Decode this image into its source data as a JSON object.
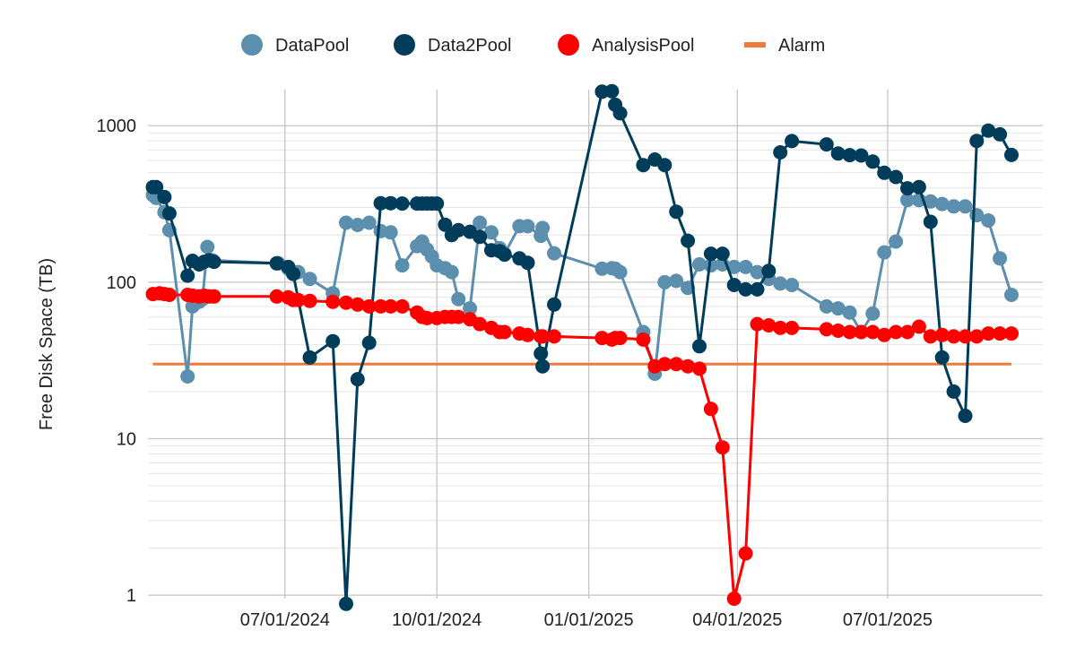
{
  "chart_data": {
    "type": "line",
    "title": "",
    "xlabel": "",
    "ylabel": "Free Disk Space (TB)",
    "y_scale": "log",
    "ylim": [
      0.95,
      1700
    ],
    "xlim": [
      "2024-04-09",
      "2025-10-03"
    ],
    "x_ticks": [
      "2024-07-01",
      "2024-10-01",
      "2025-01-01",
      "2025-04-01",
      "2025-07-01"
    ],
    "x_tick_labels": [
      "07/01/2024",
      "10/01/2024",
      "01/01/2025",
      "04/01/2025",
      "07/01/2025"
    ],
    "y_ticks": [
      1,
      10,
      100,
      1000
    ],
    "y_tick_labels": [
      "1",
      "10",
      "100",
      "1000"
    ],
    "grid": true,
    "legend_position": "top",
    "series": [
      {
        "name": "DataPool",
        "color": "#5b8fad",
        "marker": "circle",
        "points": [
          [
            "2024-04-12",
            360
          ],
          [
            "2024-04-14",
            345
          ],
          [
            "2024-04-19",
            280
          ],
          [
            "2024-04-22",
            215
          ],
          [
            "2024-05-03",
            25
          ],
          [
            "2024-05-06",
            70
          ],
          [
            "2024-05-10",
            75
          ],
          [
            "2024-05-12",
            78
          ],
          [
            "2024-05-15",
            168
          ],
          [
            "2024-05-18",
            138
          ],
          [
            "2024-06-27",
            132
          ],
          [
            "2024-07-03",
            122
          ],
          [
            "2024-07-09",
            116
          ],
          [
            "2024-07-16",
            105
          ],
          [
            "2024-07-30",
            85
          ],
          [
            "2024-08-07",
            240
          ],
          [
            "2024-08-14",
            232
          ],
          [
            "2024-08-21",
            240
          ],
          [
            "2024-08-28",
            212
          ],
          [
            "2024-09-03",
            208
          ],
          [
            "2024-09-10",
            128
          ],
          [
            "2024-09-19",
            170
          ],
          [
            "2024-09-22",
            182
          ],
          [
            "2024-09-25",
            162
          ],
          [
            "2024-09-28",
            146
          ],
          [
            "2024-10-01",
            128
          ],
          [
            "2024-10-06",
            123
          ],
          [
            "2024-10-10",
            116
          ],
          [
            "2024-10-14",
            78
          ],
          [
            "2024-10-21",
            68
          ],
          [
            "2024-10-27",
            240
          ],
          [
            "2024-11-03",
            208
          ],
          [
            "2024-11-08",
            165
          ],
          [
            "2024-11-11",
            152
          ],
          [
            "2024-11-20",
            228
          ],
          [
            "2024-11-25",
            228
          ],
          [
            "2024-12-03",
            198
          ],
          [
            "2024-12-04",
            222
          ],
          [
            "2024-12-11",
            153
          ],
          [
            "2025-01-09",
            122
          ],
          [
            "2025-01-15",
            123
          ],
          [
            "2025-01-17",
            122
          ],
          [
            "2025-01-20",
            116
          ],
          [
            "2025-02-03",
            48
          ],
          [
            "2025-02-10",
            26
          ],
          [
            "2025-02-16",
            100
          ],
          [
            "2025-02-23",
            102
          ],
          [
            "2025-03-02",
            92
          ],
          [
            "2025-03-09",
            130
          ],
          [
            "2025-03-16",
            128
          ],
          [
            "2025-03-23",
            130
          ],
          [
            "2025-03-30",
            125
          ],
          [
            "2025-04-06",
            125
          ],
          [
            "2025-04-13",
            116
          ],
          [
            "2025-04-20",
            105
          ],
          [
            "2025-04-27",
            98
          ],
          [
            "2025-05-04",
            96
          ],
          [
            "2025-05-25",
            70
          ],
          [
            "2025-06-01",
            68
          ],
          [
            "2025-06-08",
            64
          ],
          [
            "2025-06-15",
            48
          ],
          [
            "2025-06-22",
            63
          ],
          [
            "2025-06-29",
            155
          ],
          [
            "2025-07-06",
            182
          ],
          [
            "2025-07-13",
            335
          ],
          [
            "2025-07-20",
            335
          ],
          [
            "2025-07-27",
            328
          ],
          [
            "2025-08-03",
            316
          ],
          [
            "2025-08-10",
            305
          ],
          [
            "2025-08-17",
            305
          ],
          [
            "2025-08-24",
            268
          ],
          [
            "2025-08-31",
            248
          ],
          [
            "2025-09-07",
            142
          ],
          [
            "2025-09-14",
            83
          ]
        ]
      },
      {
        "name": "Data2Pool",
        "color": "#003d5b",
        "marker": "circle",
        "points": [
          [
            "2024-04-12",
            405
          ],
          [
            "2024-04-14",
            405
          ],
          [
            "2024-04-19",
            350
          ],
          [
            "2024-04-22",
            275
          ],
          [
            "2024-05-03",
            110
          ],
          [
            "2024-05-06",
            137
          ],
          [
            "2024-05-10",
            130
          ],
          [
            "2024-05-13",
            135
          ],
          [
            "2024-05-16",
            138
          ],
          [
            "2024-05-19",
            135
          ],
          [
            "2024-06-26",
            132
          ],
          [
            "2024-07-03",
            125
          ],
          [
            "2024-07-06",
            113
          ],
          [
            "2024-07-16",
            33
          ],
          [
            "2024-07-30",
            42
          ],
          [
            "2024-08-07",
            0.88
          ],
          [
            "2024-08-14",
            24
          ],
          [
            "2024-08-21",
            41
          ],
          [
            "2024-08-28",
            320
          ],
          [
            "2024-09-03",
            320
          ],
          [
            "2024-09-10",
            318
          ],
          [
            "2024-09-19",
            318
          ],
          [
            "2024-09-22",
            318
          ],
          [
            "2024-09-25",
            318
          ],
          [
            "2024-09-28",
            318
          ],
          [
            "2024-10-01",
            318
          ],
          [
            "2024-10-06",
            233
          ],
          [
            "2024-10-10",
            200
          ],
          [
            "2024-10-14",
            215
          ],
          [
            "2024-10-21",
            210
          ],
          [
            "2024-10-27",
            195
          ],
          [
            "2024-11-03",
            160
          ],
          [
            "2024-11-08",
            158
          ],
          [
            "2024-11-11",
            150
          ],
          [
            "2024-11-20",
            142
          ],
          [
            "2024-11-25",
            133
          ],
          [
            "2024-12-03",
            35
          ],
          [
            "2024-12-04",
            29
          ],
          [
            "2024-12-11",
            72
          ],
          [
            "2025-01-09",
            1650
          ],
          [
            "2025-01-15",
            1660
          ],
          [
            "2025-01-17",
            1360
          ],
          [
            "2025-01-20",
            1200
          ],
          [
            "2025-02-03",
            560
          ],
          [
            "2025-02-10",
            608
          ],
          [
            "2025-02-16",
            560
          ],
          [
            "2025-02-23",
            282
          ],
          [
            "2025-03-02",
            184
          ],
          [
            "2025-03-09",
            39
          ],
          [
            "2025-03-16",
            152
          ],
          [
            "2025-03-23",
            152
          ],
          [
            "2025-03-30",
            96
          ],
          [
            "2025-04-06",
            90
          ],
          [
            "2025-04-13",
            90
          ],
          [
            "2025-04-20",
            118
          ],
          [
            "2025-04-27",
            675
          ],
          [
            "2025-05-04",
            798
          ],
          [
            "2025-05-25",
            760
          ],
          [
            "2025-06-01",
            665
          ],
          [
            "2025-06-08",
            648
          ],
          [
            "2025-06-15",
            645
          ],
          [
            "2025-06-22",
            590
          ],
          [
            "2025-06-29",
            500
          ],
          [
            "2025-07-06",
            470
          ],
          [
            "2025-07-13",
            398
          ],
          [
            "2025-07-20",
            405
          ],
          [
            "2025-07-27",
            243
          ],
          [
            "2025-08-03",
            33
          ],
          [
            "2025-08-10",
            20
          ],
          [
            "2025-08-17",
            14
          ],
          [
            "2025-08-24",
            800
          ],
          [
            "2025-08-31",
            930
          ],
          [
            "2025-09-07",
            880
          ],
          [
            "2025-09-14",
            650
          ]
        ]
      },
      {
        "name": "AnalysisPool",
        "color": "#ff0000",
        "marker": "circle",
        "points": [
          [
            "2024-04-12",
            84
          ],
          [
            "2024-04-16",
            85
          ],
          [
            "2024-04-19",
            84
          ],
          [
            "2024-04-22",
            83
          ],
          [
            "2024-05-03",
            83
          ],
          [
            "2024-05-06",
            82
          ],
          [
            "2024-05-10",
            81
          ],
          [
            "2024-05-13",
            82
          ],
          [
            "2024-05-16",
            81
          ],
          [
            "2024-05-19",
            81
          ],
          [
            "2024-06-26",
            81
          ],
          [
            "2024-07-03",
            80
          ],
          [
            "2024-07-06",
            77
          ],
          [
            "2024-07-09",
            77
          ],
          [
            "2024-07-16",
            76
          ],
          [
            "2024-07-30",
            75
          ],
          [
            "2024-08-07",
            74
          ],
          [
            "2024-08-14",
            72
          ],
          [
            "2024-08-21",
            70
          ],
          [
            "2024-08-28",
            70
          ],
          [
            "2024-09-03",
            70
          ],
          [
            "2024-09-10",
            70
          ],
          [
            "2024-09-19",
            64
          ],
          [
            "2024-09-22",
            60
          ],
          [
            "2024-09-25",
            59
          ],
          [
            "2024-10-01",
            59
          ],
          [
            "2024-10-06",
            60
          ],
          [
            "2024-10-10",
            60
          ],
          [
            "2024-10-14",
            60
          ],
          [
            "2024-10-21",
            58
          ],
          [
            "2024-10-27",
            54
          ],
          [
            "2024-11-03",
            51
          ],
          [
            "2024-11-08",
            48
          ],
          [
            "2024-11-11",
            48
          ],
          [
            "2024-11-20",
            47
          ],
          [
            "2024-11-25",
            46
          ],
          [
            "2024-12-03",
            45
          ],
          [
            "2024-12-04",
            45
          ],
          [
            "2024-12-11",
            45
          ],
          [
            "2025-01-09",
            44
          ],
          [
            "2025-01-15",
            43
          ],
          [
            "2025-01-17",
            44
          ],
          [
            "2025-01-20",
            44
          ],
          [
            "2025-02-03",
            43
          ],
          [
            "2025-02-10",
            29
          ],
          [
            "2025-02-16",
            30
          ],
          [
            "2025-02-23",
            30
          ],
          [
            "2025-03-02",
            29
          ],
          [
            "2025-03-09",
            28
          ],
          [
            "2025-03-16",
            15.5
          ],
          [
            "2025-03-23",
            8.8
          ],
          [
            "2025-03-30",
            0.95
          ],
          [
            "2025-04-06",
            1.85
          ],
          [
            "2025-04-13",
            54
          ],
          [
            "2025-04-20",
            53
          ],
          [
            "2025-04-27",
            51
          ],
          [
            "2025-05-04",
            51
          ],
          [
            "2025-05-25",
            50
          ],
          [
            "2025-06-01",
            49
          ],
          [
            "2025-06-08",
            48
          ],
          [
            "2025-06-15",
            48
          ],
          [
            "2025-06-22",
            48
          ],
          [
            "2025-06-29",
            46
          ],
          [
            "2025-07-06",
            48
          ],
          [
            "2025-07-13",
            48
          ],
          [
            "2025-07-20",
            52
          ],
          [
            "2025-07-27",
            45
          ],
          [
            "2025-08-03",
            46
          ],
          [
            "2025-08-10",
            45
          ],
          [
            "2025-08-17",
            45
          ],
          [
            "2025-08-24",
            45
          ],
          [
            "2025-08-31",
            47
          ],
          [
            "2025-09-07",
            47
          ],
          [
            "2025-09-14",
            47
          ]
        ]
      },
      {
        "name": "Alarm",
        "color": "#f07a3c",
        "marker": "none",
        "points": [
          [
            "2024-04-12",
            30
          ],
          [
            "2025-09-14",
            30
          ]
        ]
      }
    ]
  }
}
